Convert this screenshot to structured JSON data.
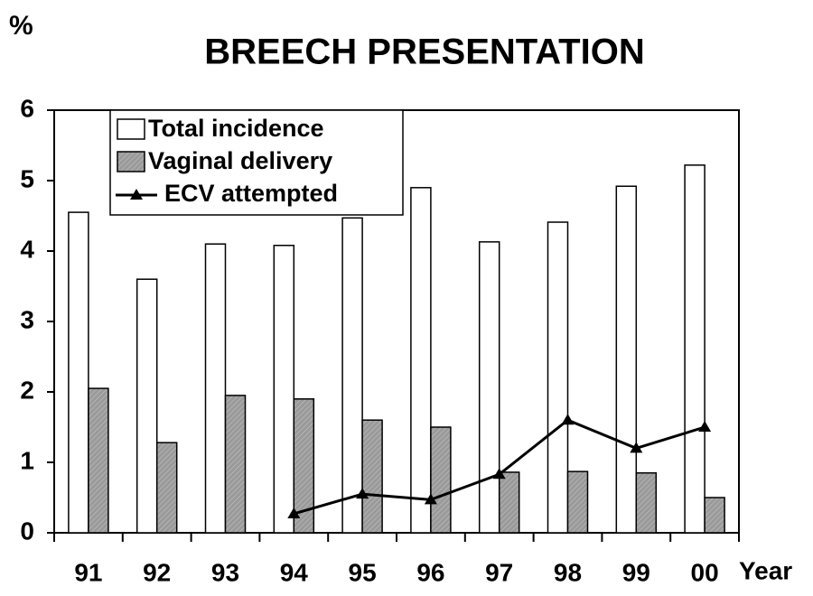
{
  "chart_data": {
    "type": "bar",
    "title": "BREECH PRESENTATION",
    "y_label": "%",
    "x_label": "Year",
    "categories": [
      "91",
      "92",
      "93",
      "94",
      "95",
      "96",
      "97",
      "98",
      "99",
      "00"
    ],
    "series": [
      {
        "name": "Total incidence",
        "type": "bar",
        "color": "#ffffff",
        "values": [
          4.55,
          3.6,
          4.1,
          4.08,
          4.47,
          4.9,
          4.13,
          4.41,
          4.92,
          5.22
        ]
      },
      {
        "name": "Vaginal delivery",
        "type": "bar",
        "color": "#9a9a9a",
        "values": [
          2.05,
          1.28,
          1.95,
          1.9,
          1.6,
          1.5,
          0.86,
          0.87,
          0.85,
          0.5
        ]
      },
      {
        "name": "ECV attempted",
        "type": "line",
        "color": "#000000",
        "values": [
          null,
          null,
          null,
          0.27,
          0.55,
          0.47,
          0.83,
          1.6,
          1.2,
          1.5
        ]
      }
    ],
    "ylim": [
      0,
      6
    ],
    "yticks": [
      0,
      1,
      2,
      3,
      4,
      5,
      6
    ],
    "grid": false,
    "legend": "top-left"
  }
}
